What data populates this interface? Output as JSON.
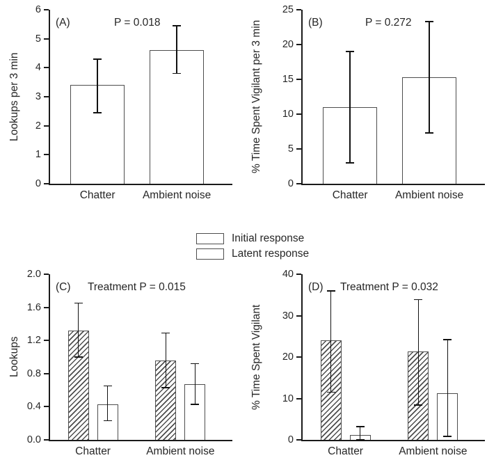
{
  "page": {
    "background": "#ffffff",
    "axis_color": "#1a1a1a",
    "bar_border_color": "#4d4d4d"
  },
  "legend": {
    "items": [
      {
        "label": "Initial response",
        "pattern": "hatched"
      },
      {
        "label": "Latent response",
        "pattern": "open"
      }
    ]
  },
  "chart_data": [
    {
      "type": "bar",
      "panel_label": "(A)",
      "p_label": "P = 0.018",
      "ylabel": "Lookups per 3 min",
      "ylim": [
        0,
        6
      ],
      "yticks": [
        "0",
        "1",
        "2",
        "3",
        "4",
        "5",
        "6"
      ],
      "categories": [
        "Chatter",
        "Ambient noise"
      ],
      "grid": false,
      "series": [
        {
          "name": "mean",
          "pattern": "open",
          "values": [
            3.4,
            4.6
          ],
          "err_minus": [
            0.95,
            0.8
          ],
          "err_plus": [
            0.9,
            0.85
          ]
        }
      ]
    },
    {
      "type": "bar",
      "panel_label": "(B)",
      "p_label": "P = 0.272",
      "ylabel": "% Time Spent Vigilant per 3 min",
      "ylim": [
        0,
        25
      ],
      "yticks": [
        "0",
        "5",
        "10",
        "15",
        "20",
        "25"
      ],
      "categories": [
        "Chatter",
        "Ambient noise"
      ],
      "grid": false,
      "series": [
        {
          "name": "mean",
          "pattern": "open",
          "values": [
            11,
            15.3
          ],
          "err_minus": [
            8,
            8
          ],
          "err_plus": [
            8,
            8
          ]
        }
      ]
    },
    {
      "type": "bar",
      "panel_label": "(C)",
      "p_label": "Treatment P = 0.015",
      "ylabel": "Lookups",
      "ylim": [
        0,
        2
      ],
      "yticks": [
        "0.0",
        "0.4",
        "0.8",
        "1.2",
        "1.6",
        "2.0"
      ],
      "categories": [
        "Chatter",
        "Ambient noise"
      ],
      "grid": false,
      "series": [
        {
          "name": "Initial response",
          "pattern": "hatched",
          "values": [
            1.32,
            0.96
          ],
          "err_minus": [
            0.32,
            0.33
          ],
          "err_plus": [
            0.33,
            0.33
          ]
        },
        {
          "name": "Latent response",
          "pattern": "open",
          "values": [
            0.43,
            0.67
          ],
          "err_minus": [
            0.2,
            0.24
          ],
          "err_plus": [
            0.22,
            0.25
          ]
        }
      ]
    },
    {
      "type": "bar",
      "panel_label": "(D)",
      "p_label": "Treatment P = 0.032",
      "ylabel": "% Time Spent Vigilant",
      "ylim": [
        0,
        40
      ],
      "yticks": [
        "0",
        "10",
        "20",
        "30",
        "40"
      ],
      "categories": [
        "Chatter",
        "Ambient noise"
      ],
      "grid": false,
      "series": [
        {
          "name": "Initial response",
          "pattern": "hatched",
          "values": [
            24,
            21.3
          ],
          "err_minus": [
            12.5,
            12.9
          ],
          "err_plus": [
            12,
            12.6
          ]
        },
        {
          "name": "Latent response",
          "pattern": "open",
          "values": [
            1.2,
            11.3
          ],
          "err_minus": [
            1.2,
            10.5
          ],
          "err_plus": [
            2,
            12.9
          ]
        }
      ]
    }
  ]
}
